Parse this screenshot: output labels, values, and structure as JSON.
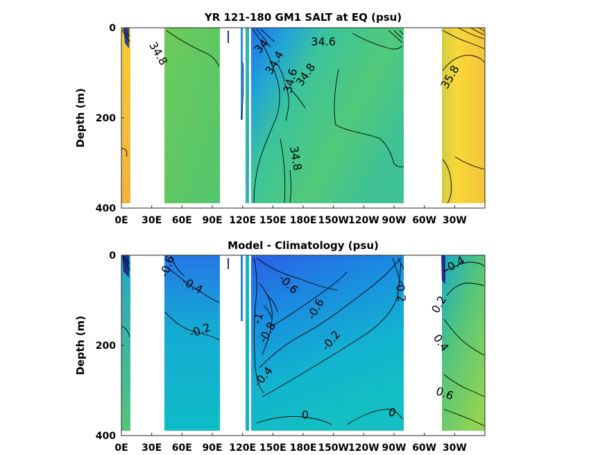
{
  "chart_data": [
    {
      "type": "heatmap",
      "title": "YR 121-180 GM1 SALT at EQ (psu)",
      "ylabel": "Depth (m)",
      "xlabel": "",
      "x_ticks": [
        "0E",
        "30E",
        "60E",
        "90E",
        "120E",
        "150E",
        "180E",
        "150W",
        "120W",
        "90W",
        "60W",
        "30W"
      ],
      "y_ticks": [
        "0",
        "200",
        "400"
      ],
      "xlim": [
        0,
        360
      ],
      "ylim": [
        400,
        0
      ],
      "contour_labels": [
        {
          "text": "34.8",
          "lon": 36,
          "depth": 58,
          "angle": 60
        },
        {
          "text": "34",
          "lon": 139,
          "depth": 42,
          "angle": -50
        },
        {
          "text": "34.4",
          "lon": 152,
          "depth": 78,
          "angle": -60
        },
        {
          "text": "34.6",
          "lon": 168,
          "depth": 118,
          "angle": -75
        },
        {
          "text": "34.6",
          "lon": 200,
          "depth": 32,
          "angle": 0
        },
        {
          "text": "34.8",
          "lon": 183,
          "depth": 105,
          "angle": -55
        },
        {
          "text": "35.8",
          "lon": 326,
          "depth": 110,
          "angle": -60
        },
        {
          "text": "34.8",
          "lon": 172,
          "depth": 290,
          "angle": 80
        }
      ],
      "colors": {
        "high": "#f5d336",
        "mid": "#55c97a",
        "low": "#1e63e8"
      }
    },
    {
      "type": "heatmap",
      "title": "Model - Climatology (psu)",
      "ylabel": "Depth (m)",
      "xlabel": "",
      "x_ticks": [
        "0E",
        "30E",
        "60E",
        "90E",
        "120E",
        "150E",
        "180E",
        "150W",
        "120W",
        "90W",
        "60W",
        "30W"
      ],
      "y_ticks": [
        "0",
        "200",
        "400"
      ],
      "xlim": [
        0,
        360
      ],
      "ylim": [
        400,
        0
      ],
      "contour_labels": [
        {
          "text": "-0.6",
          "lon": 46,
          "depth": 25,
          "angle": -70
        },
        {
          "text": "-0.4",
          "lon": 70,
          "depth": 68,
          "angle": 30
        },
        {
          "text": "-0.2",
          "lon": 78,
          "depth": 168,
          "angle": -20
        },
        {
          "text": "-0.8",
          "lon": 145,
          "depth": 172,
          "angle": -60
        },
        {
          "text": "-1",
          "lon": 136,
          "depth": 140,
          "angle": -75
        },
        {
          "text": "-0.4",
          "lon": 141,
          "depth": 270,
          "angle": -50
        },
        {
          "text": "-0.6",
          "lon": 165,
          "depth": 65,
          "angle": 45
        },
        {
          "text": "-0.6",
          "lon": 193,
          "depth": 120,
          "angle": -60
        },
        {
          "text": "-0.2",
          "lon": 208,
          "depth": 190,
          "angle": -50
        },
        {
          "text": "0",
          "lon": 182,
          "depth": 355,
          "angle": 0
        },
        {
          "text": "0",
          "lon": 268,
          "depth": 350,
          "angle": 20
        },
        {
          "text": "-0.2",
          "lon": 276,
          "depth": 80,
          "angle": 85
        },
        {
          "text": "-0.4",
          "lon": 330,
          "depth": 22,
          "angle": -30
        },
        {
          "text": "0.2",
          "lon": 315,
          "depth": 110,
          "angle": -60
        },
        {
          "text": "0.4",
          "lon": 316,
          "depth": 195,
          "angle": 55
        },
        {
          "text": "0.6",
          "lon": 320,
          "depth": 308,
          "angle": 20
        }
      ],
      "colors": {
        "high": "#9fd64a",
        "mid": "#16b8c8",
        "low": "#2a62e6"
      }
    }
  ]
}
